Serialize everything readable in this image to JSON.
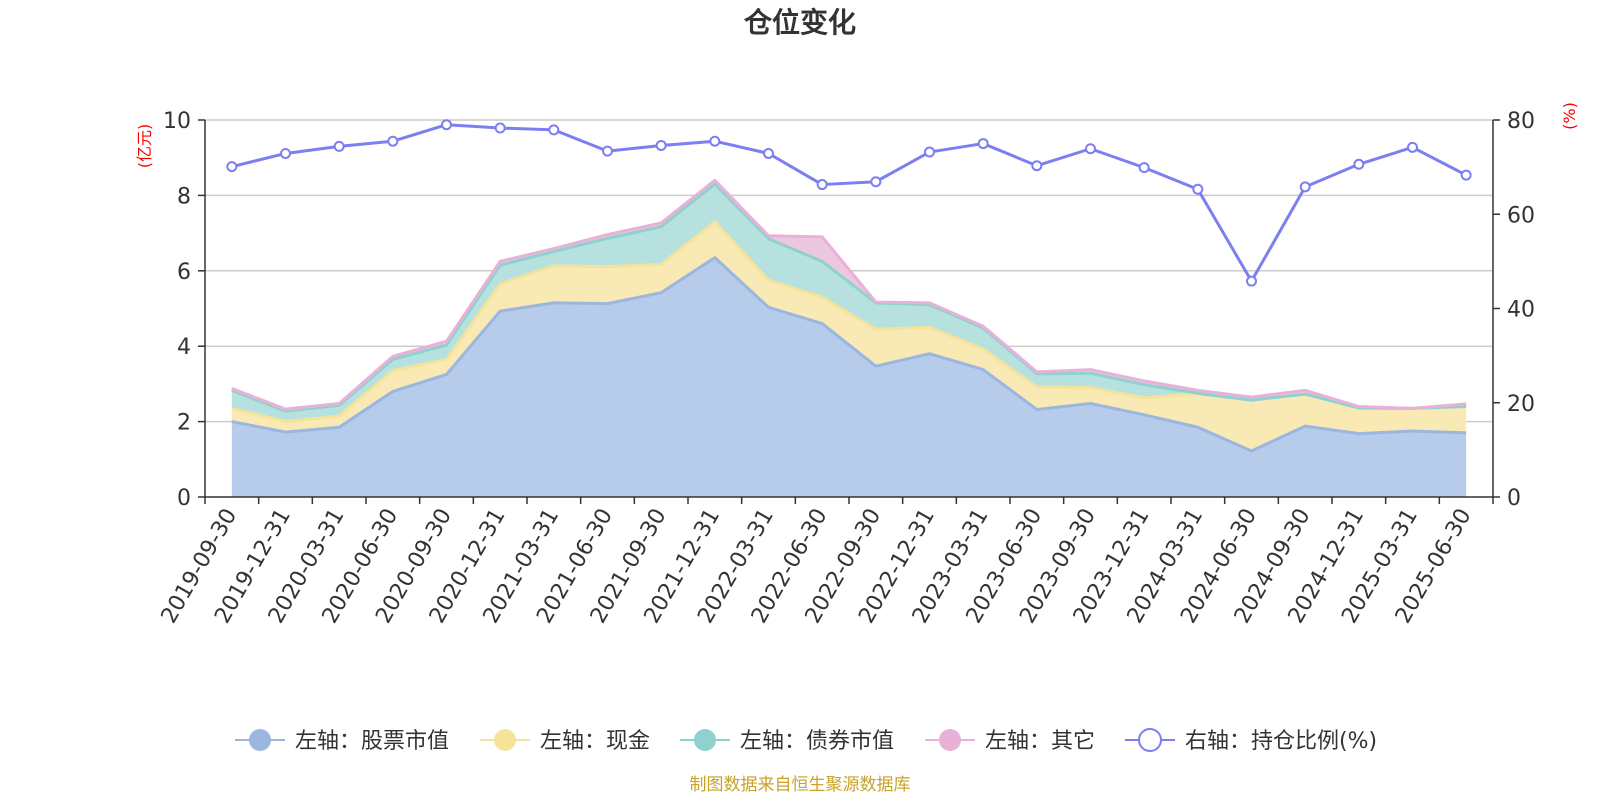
{
  "chart_data": {
    "type": "area",
    "title": "仓位变化",
    "left_axis_unit": "(亿元)",
    "right_axis_unit": "(%)",
    "left_ylim": [
      0,
      10
    ],
    "left_yticks": [
      "0",
      "2",
      "4",
      "6",
      "8",
      "10"
    ],
    "right_ylim": [
      0,
      80
    ],
    "right_yticks": [
      "0",
      "20",
      "40",
      "60",
      "80"
    ],
    "grid": true,
    "legend_position": "bottom",
    "x": [
      "2019-09-30",
      "2019-12-31",
      "2020-03-31",
      "2020-06-30",
      "2020-09-30",
      "2020-12-31",
      "2021-03-31",
      "2021-06-30",
      "2021-09-30",
      "2021-12-31",
      "2022-03-31",
      "2022-06-30",
      "2022-09-30",
      "2022-12-31",
      "2023-03-31",
      "2023-06-30",
      "2023-09-30",
      "2023-12-31",
      "2024-03-31",
      "2024-06-30",
      "2024-09-30",
      "2024-12-31",
      "2025-03-31",
      "2025-06-30"
    ],
    "series": [
      {
        "name": "左轴：股票市值",
        "axis": "left",
        "stack": true,
        "color": "#9bb7e0",
        "fill": "#b7cbea",
        "values": [
          2.0,
          1.72,
          1.85,
          2.8,
          3.25,
          4.93,
          5.15,
          5.13,
          5.42,
          6.35,
          5.03,
          4.6,
          3.47,
          3.8,
          3.38,
          2.32,
          2.48,
          2.18,
          1.85,
          1.22,
          1.88,
          1.68,
          1.75,
          1.7
        ]
      },
      {
        "name": "左轴：现金",
        "axis": "left",
        "stack": true,
        "color": "#f6e39a",
        "fill": "#f8e9b5",
        "values": [
          0.35,
          0.28,
          0.3,
          0.55,
          0.4,
          0.72,
          0.98,
          0.98,
          0.75,
          0.95,
          0.72,
          0.7,
          0.98,
          0.7,
          0.55,
          0.6,
          0.42,
          0.45,
          0.9,
          1.35,
          0.85,
          0.68,
          0.6,
          0.7
        ]
      },
      {
        "name": "左轴：债券市值",
        "axis": "left",
        "stack": true,
        "color": "#8fd1cf",
        "fill": "#b6e1df",
        "values": [
          0.48,
          0.28,
          0.28,
          0.3,
          0.38,
          0.5,
          0.38,
          0.75,
          1.0,
          1.0,
          1.1,
          0.95,
          0.7,
          0.6,
          0.55,
          0.35,
          0.38,
          0.35,
          0.0,
          0.0,
          0.0,
          0.0,
          0.0,
          0.0
        ]
      },
      {
        "name": "左轴：其它",
        "axis": "left",
        "stack": true,
        "color": "#e8b2d8",
        "fill": "#edc6df",
        "values": [
          0.05,
          0.05,
          0.05,
          0.08,
          0.1,
          0.1,
          0.08,
          0.1,
          0.1,
          0.1,
          0.08,
          0.65,
          0.02,
          0.05,
          0.05,
          0.05,
          0.1,
          0.1,
          0.08,
          0.08,
          0.1,
          0.04,
          0.0,
          0.07
        ]
      },
      {
        "name": "右轴：持仓比例(%)",
        "axis": "right",
        "type": "line",
        "color": "#7b7ff0",
        "values": [
          70.1,
          72.9,
          74.4,
          75.5,
          79.0,
          78.3,
          77.9,
          73.4,
          74.6,
          75.5,
          72.9,
          66.3,
          66.9,
          73.2,
          75.0,
          70.3,
          73.9,
          69.9,
          65.3,
          45.8,
          65.8,
          70.6,
          74.2,
          68.3
        ]
      }
    ],
    "source_note": "制图数据来自恒生聚源数据库"
  }
}
